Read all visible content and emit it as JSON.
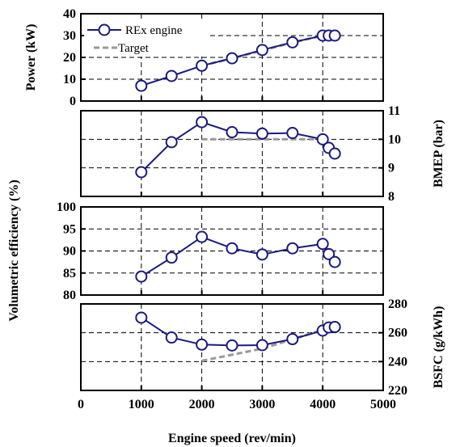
{
  "chart_data": {
    "type": "line",
    "x": [
      1000,
      1500,
      2000,
      2500,
      3000,
      3500,
      4000,
      4100,
      4200
    ],
    "xlabel": "Engine speed (rev/min)",
    "xlim": [
      0,
      5000
    ],
    "xticks": [
      "0",
      "1000",
      "2000",
      "3000",
      "4000",
      "5000"
    ],
    "legend": {
      "position": "top-left",
      "entries": [
        "REx engine",
        "Target"
      ]
    },
    "colors": {
      "rex": "#1a1a80",
      "target": "#999999",
      "grid": "#000000"
    },
    "grid": true,
    "panels": [
      {
        "id": "power",
        "ylabel": "Power (kW)",
        "ylabel_side": "left",
        "ylim": [
          0,
          40
        ],
        "yticks": [
          "0",
          "10",
          "20",
          "30",
          "40"
        ],
        "series": [
          {
            "name": "REx engine",
            "x": [
              1000,
              1500,
              2000,
              2500,
              3000,
              3500,
              4000,
              4100,
              4200
            ],
            "values": [
              7,
              11.5,
              16.2,
              19.6,
              23.4,
              26.9,
              30,
              30,
              30
            ]
          },
          {
            "name": "Target",
            "x": [
              2000,
              2500,
              3000,
              3500,
              4000
            ],
            "values": [
              16.2,
              19.5,
              23.2,
              26.8,
              30
            ]
          }
        ]
      },
      {
        "id": "bmep",
        "ylabel": "BMEP (bar)",
        "ylabel_side": "right",
        "ylim": [
          8,
          11
        ],
        "yticks": [
          "8",
          "9",
          "10",
          "11"
        ],
        "series": [
          {
            "name": "REx engine",
            "x": [
              1000,
              1500,
              2000,
              2500,
              3000,
              3500,
              4000,
              4100,
              4200
            ],
            "values": [
              8.85,
              9.9,
              10.6,
              10.25,
              10.2,
              10.22,
              10.0,
              9.7,
              9.5
            ]
          },
          {
            "name": "Target",
            "x": [
              2000,
              4000
            ],
            "values": [
              10.0,
              10.0
            ]
          }
        ]
      },
      {
        "id": "ve",
        "ylabel": "Volumetric efficiency (%)",
        "ylabel_side": "left",
        "ylim": [
          80,
          100
        ],
        "yticks": [
          "80",
          "85",
          "90",
          "95",
          "100"
        ],
        "series": [
          {
            "name": "REx engine",
            "x": [
              1000,
              1500,
              2000,
              2500,
              3000,
              3500,
              4000,
              4100,
              4200
            ],
            "values": [
              84.2,
              88.5,
              93.2,
              90.6,
              89.2,
              90.6,
              91.6,
              89.3,
              87.5
            ]
          }
        ]
      },
      {
        "id": "bsfc",
        "ylabel": "BSFC (g/kWh)",
        "ylabel_side": "right",
        "ylim": [
          220,
          280
        ],
        "yticks": [
          "220",
          "240",
          "260",
          "280"
        ],
        "series": [
          {
            "name": "REx engine",
            "x": [
              1000,
              1500,
              2000,
              2500,
              3000,
              3500,
              4000,
              4100,
              4200
            ],
            "values": [
              270.5,
              256.7,
              251.8,
              251.2,
              251.4,
              255.6,
              261.5,
              263.7,
              264
            ]
          },
          {
            "name": "Target",
            "x": [
              2000,
              3000,
              4000
            ],
            "values": [
              240.5,
              249,
              262
            ]
          }
        ]
      }
    ]
  }
}
